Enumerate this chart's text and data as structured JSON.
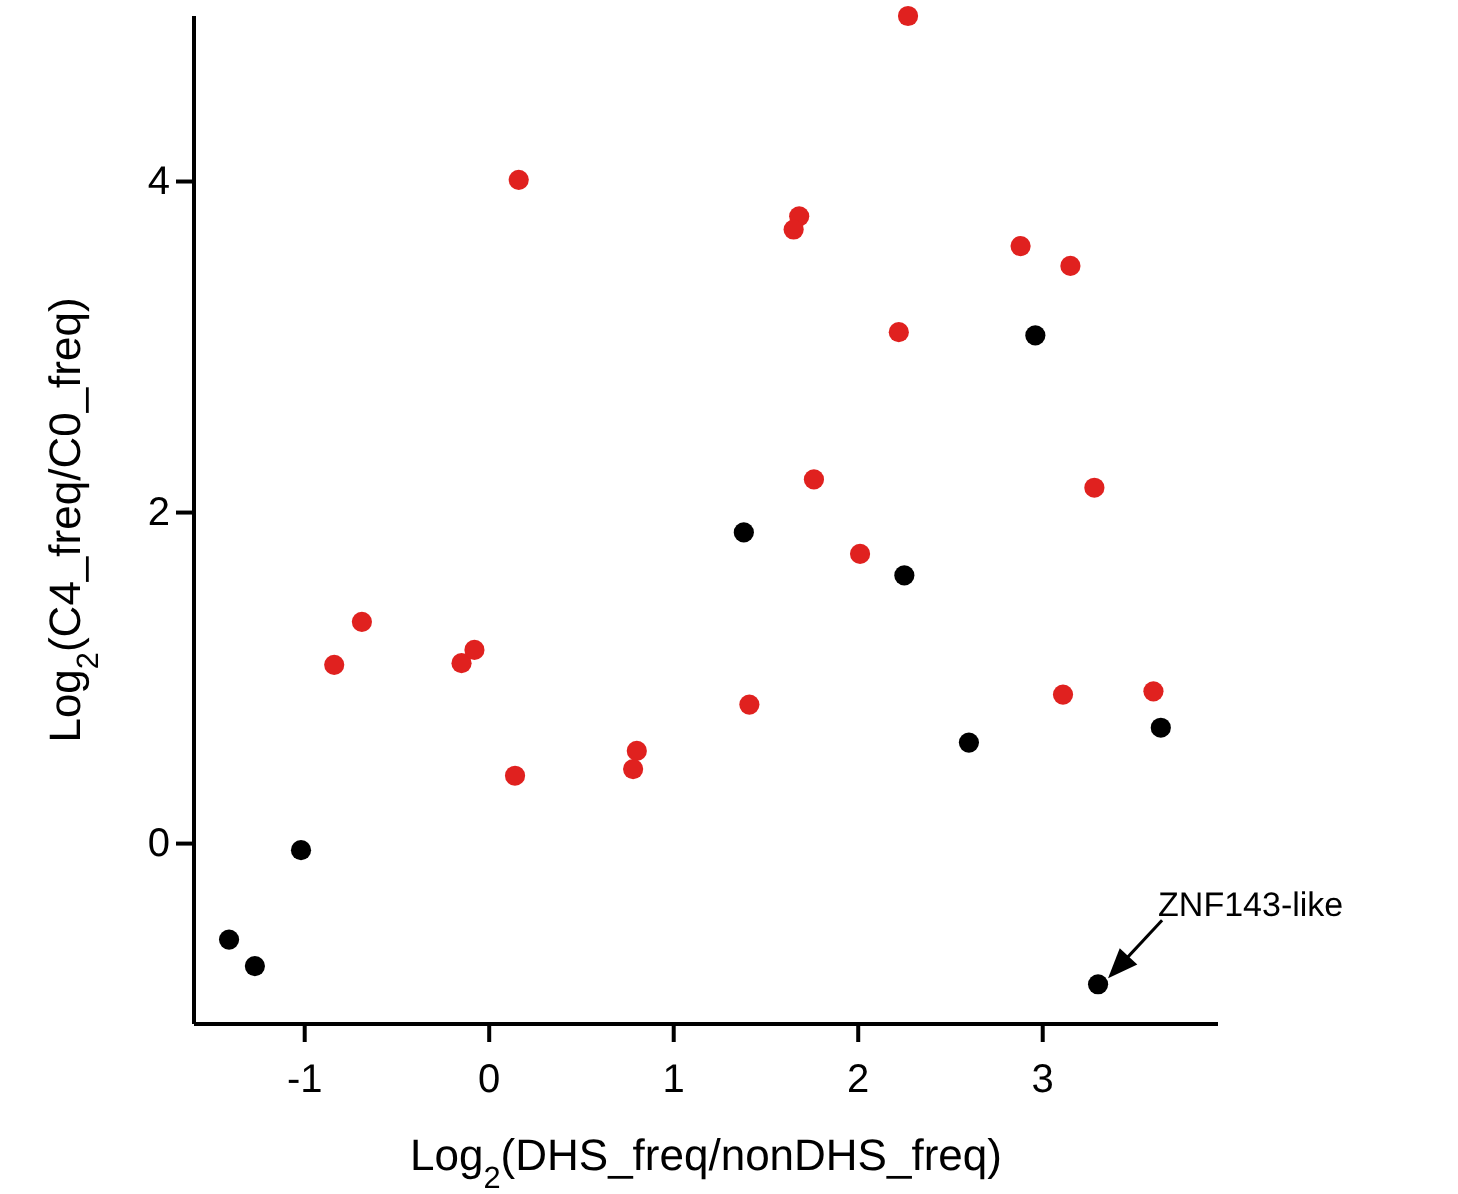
{
  "chart_data": {
    "type": "scatter",
    "xlabel": "Log$_{2}$(DHS_freq/nonDHS_freq)",
    "ylabel": "Log$_{2}$(C4_freq/C0_freq)",
    "xlim": [
      -1.6,
      3.95
    ],
    "ylim": [
      -1.09,
      5.0
    ],
    "xticks": [
      -1,
      0,
      1,
      2,
      3
    ],
    "yticks": [
      0,
      2,
      4
    ],
    "grid": false,
    "marker": "circle",
    "series": [
      {
        "color": "#000000",
        "x": [
          -1.41,
          -1.27,
          -1.02,
          1.38,
          2.25,
          2.96,
          2.6,
          3.64,
          3.3
        ],
        "values": [
          -0.58,
          -0.74,
          -0.04,
          1.88,
          1.62,
          3.07,
          0.61,
          0.7,
          -0.85
        ]
      },
      {
        "color": "#e0211f",
        "x": [
          0.16,
          1.68,
          1.65,
          1.76,
          -0.69,
          -0.84,
          -0.15,
          -0.08,
          1.41,
          0.14,
          0.8,
          0.78,
          2.27,
          2.88,
          3.15,
          2.22,
          3.28,
          2.01,
          3.11,
          3.6
        ],
        "values": [
          4.01,
          3.79,
          3.71,
          2.2,
          1.34,
          1.08,
          1.09,
          1.17,
          0.84,
          0.41,
          0.56,
          0.45,
          5.0,
          3.61,
          3.49,
          3.09,
          2.15,
          1.75,
          0.9,
          0.92
        ]
      }
    ],
    "annotations": [
      {
        "text": "ZNF143-like",
        "x": 3.3,
        "y": -0.85
      }
    ]
  }
}
